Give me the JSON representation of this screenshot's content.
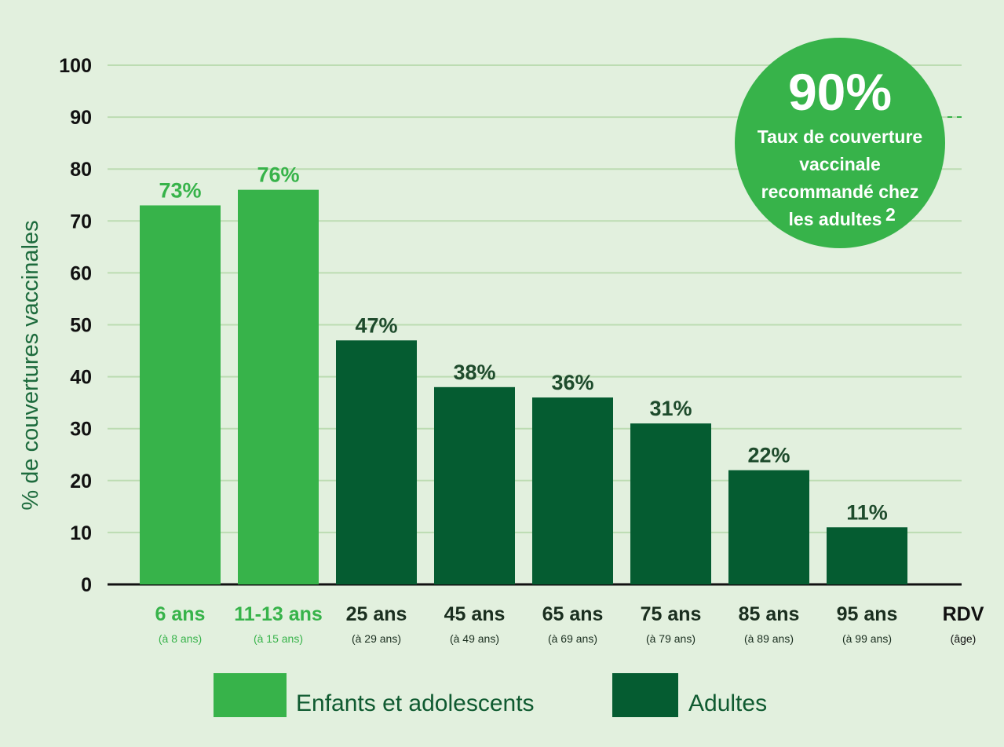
{
  "chart_data": {
    "type": "bar",
    "ylabel": "% de couvertures vaccinales",
    "ylim": [
      0,
      100
    ],
    "yticks": [
      0,
      10,
      20,
      30,
      40,
      50,
      60,
      70,
      80,
      90,
      100
    ],
    "grid": true,
    "categories": [
      {
        "label": "6 ans",
        "sub": "(à 8 ans)",
        "value": 73,
        "value_label": "73%",
        "group": "Enfants et adolescents"
      },
      {
        "label": "11-13 ans",
        "sub": "(à 15 ans)",
        "value": 76,
        "value_label": "76%",
        "group": "Enfants et adolescents"
      },
      {
        "label": "25 ans",
        "sub": "(à 29 ans)",
        "value": 47,
        "value_label": "47%",
        "group": "Adultes"
      },
      {
        "label": "45 ans",
        "sub": "(à 49 ans)",
        "value": 38,
        "value_label": "38%",
        "group": "Adultes"
      },
      {
        "label": "65 ans",
        "sub": "(à 69 ans)",
        "value": 36,
        "value_label": "36%",
        "group": "Adultes"
      },
      {
        "label": "75 ans",
        "sub": "(à 79 ans)",
        "value": 31,
        "value_label": "31%",
        "group": "Adultes"
      },
      {
        "label": "85 ans",
        "sub": "(à 89 ans)",
        "value": 22,
        "value_label": "22%",
        "group": "Adultes"
      },
      {
        "label": "95 ans",
        "sub": "(à 99 ans)",
        "value": 11,
        "value_label": "11%",
        "group": "Adultes"
      }
    ],
    "axis_end_label": {
      "main": "RDV",
      "sub": "(âge)"
    },
    "target": {
      "value": 90,
      "value_label": "90%",
      "text_lines": [
        "Taux de couverture",
        "vaccinale",
        "recommandé chez",
        "les adultes"
      ],
      "footnote": "2"
    },
    "legend": {
      "placement": "bottom",
      "items": [
        {
          "label": "Enfants et adolescents",
          "color": "#37b34a"
        },
        {
          "label": "Adultes",
          "color": "#055c31"
        }
      ]
    },
    "colors": {
      "children_bar": "#37b34a",
      "adult_bar": "#055c31",
      "children_label": "#37b34a",
      "adult_label": "#1e4b2c",
      "grid": "#bcdcb2",
      "background": "#e2f0de"
    }
  }
}
